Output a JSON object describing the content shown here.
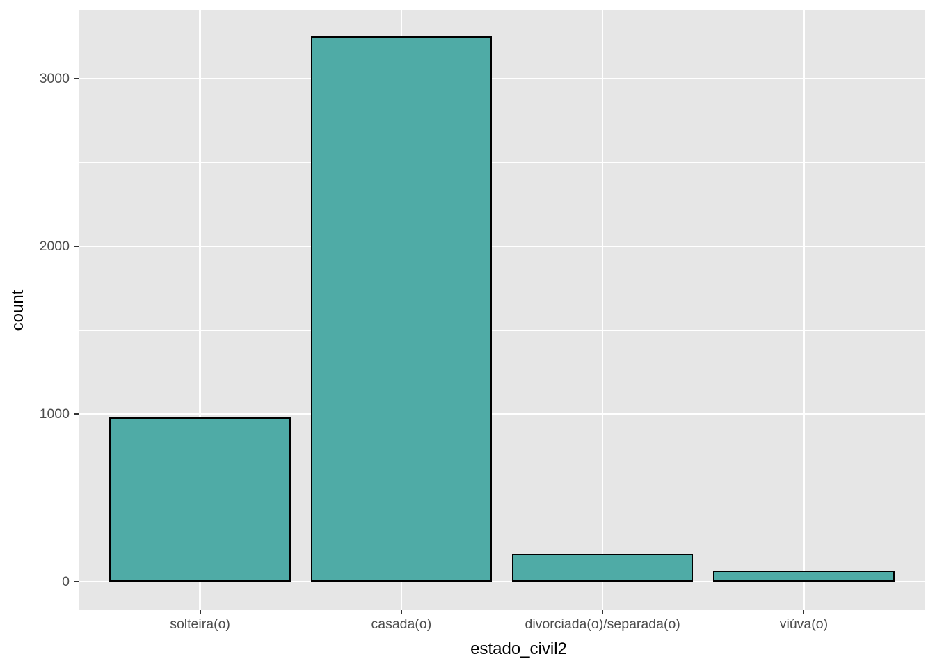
{
  "chart_data": {
    "type": "bar",
    "title": "",
    "xlabel": "estado_civil2",
    "ylabel": "count",
    "categories": [
      "solteira(o)",
      "casada(o)",
      "divorciada(o)/separada(o)",
      "viúva(o)"
    ],
    "values": [
      980,
      3254,
      165,
      65
    ],
    "yticks": [
      0,
      1000,
      2000,
      3000
    ],
    "ytick_labels": [
      "0",
      "1000",
      "2000",
      "3000"
    ],
    "yticks_minor": [
      500,
      1500,
      2500
    ],
    "ylim": [
      -166,
      3407
    ],
    "grid": "major-and-minor-horizontal-major-vertical",
    "legend_position": "none",
    "colors": {
      "figure_bg": "#FFFFFF",
      "panel_bg": "#E6E6E6",
      "grid_major": "#FFFFFF",
      "grid_minor": "#FFFFFF",
      "bar_fill": "#4FABA6",
      "bar_border": "#000000",
      "tick_mark": "#333333",
      "tick_label": "#4D4D4D",
      "axis_title": "#000000"
    }
  }
}
